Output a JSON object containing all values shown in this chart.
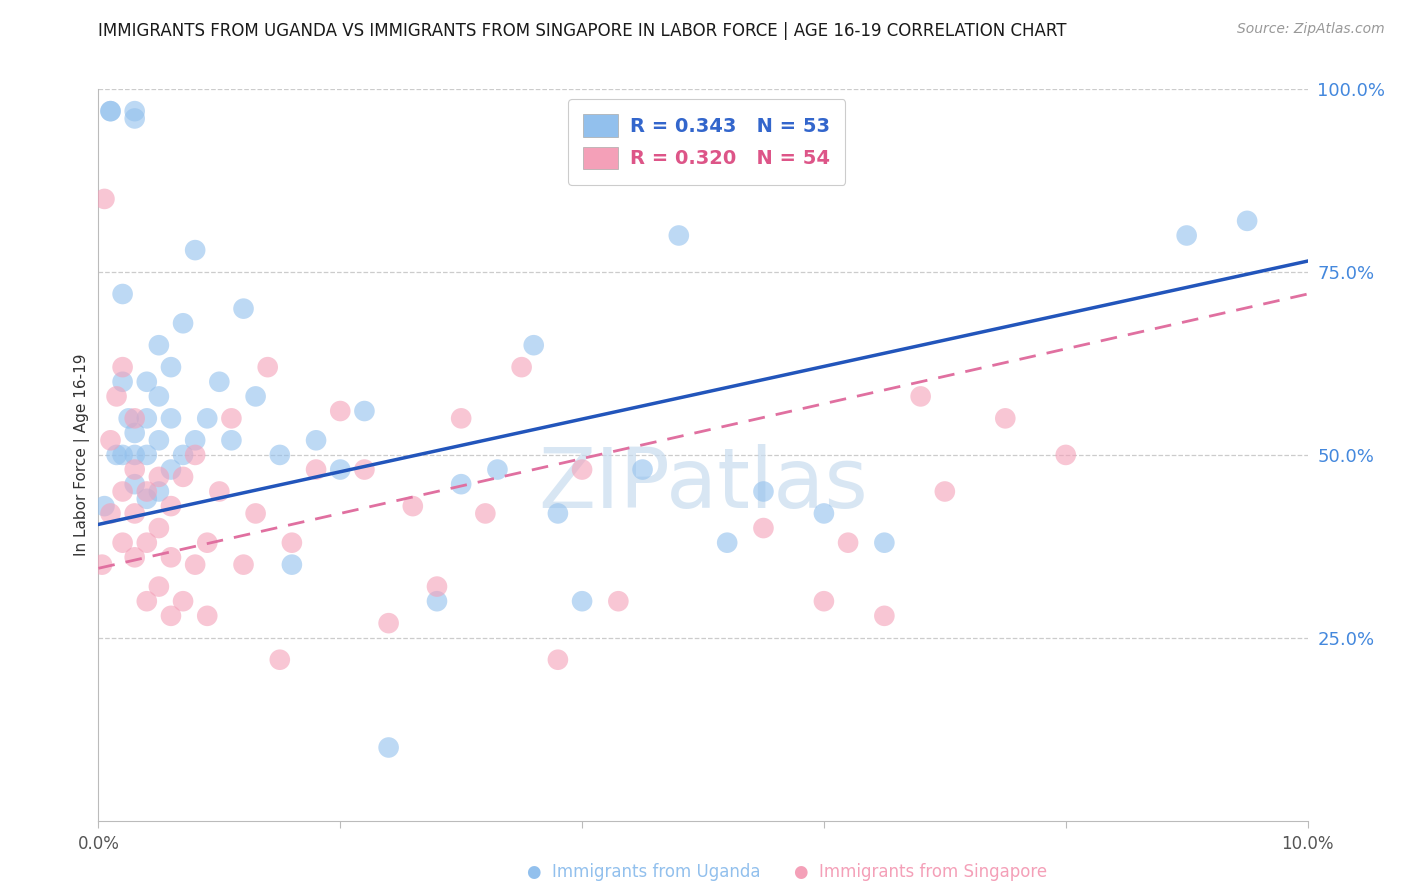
{
  "title": "IMMIGRANTS FROM UGANDA VS IMMIGRANTS FROM SINGAPORE IN LABOR FORCE | AGE 16-19 CORRELATION CHART",
  "source": "Source: ZipAtlas.com",
  "ylabel": "In Labor Force | Age 16-19",
  "xlim": [
    0.0,
    0.1
  ],
  "ylim": [
    0.0,
    1.0
  ],
  "legend_r_uganda": "R = 0.343",
  "legend_n_uganda": "N = 53",
  "legend_r_singapore": "R = 0.320",
  "legend_n_singapore": "N = 54",
  "color_uganda": "#92C0ED",
  "color_singapore": "#F4A0B8",
  "color_uganda_line": "#2255BB",
  "color_singapore_line": "#E070A0",
  "watermark_text": "ZIPatlas",
  "uganda_x": [
    0.0005,
    0.001,
    0.001,
    0.0015,
    0.002,
    0.002,
    0.002,
    0.0025,
    0.003,
    0.003,
    0.003,
    0.003,
    0.003,
    0.004,
    0.004,
    0.004,
    0.004,
    0.005,
    0.005,
    0.005,
    0.005,
    0.006,
    0.006,
    0.006,
    0.007,
    0.007,
    0.008,
    0.008,
    0.009,
    0.01,
    0.011,
    0.012,
    0.013,
    0.015,
    0.016,
    0.018,
    0.02,
    0.022,
    0.024,
    0.028,
    0.03,
    0.033,
    0.036,
    0.038,
    0.04,
    0.045,
    0.048,
    0.052,
    0.055,
    0.06,
    0.065,
    0.09,
    0.095
  ],
  "uganda_y": [
    0.43,
    0.97,
    0.97,
    0.5,
    0.6,
    0.72,
    0.5,
    0.55,
    0.96,
    0.97,
    0.5,
    0.46,
    0.53,
    0.44,
    0.5,
    0.55,
    0.6,
    0.45,
    0.52,
    0.58,
    0.65,
    0.48,
    0.55,
    0.62,
    0.5,
    0.68,
    0.52,
    0.78,
    0.55,
    0.6,
    0.52,
    0.7,
    0.58,
    0.5,
    0.35,
    0.52,
    0.48,
    0.56,
    0.1,
    0.3,
    0.46,
    0.48,
    0.65,
    0.42,
    0.3,
    0.48,
    0.8,
    0.38,
    0.45,
    0.42,
    0.38,
    0.8,
    0.82
  ],
  "singapore_x": [
    0.0003,
    0.0005,
    0.001,
    0.001,
    0.0015,
    0.002,
    0.002,
    0.002,
    0.003,
    0.003,
    0.003,
    0.003,
    0.004,
    0.004,
    0.004,
    0.005,
    0.005,
    0.005,
    0.006,
    0.006,
    0.006,
    0.007,
    0.007,
    0.008,
    0.008,
    0.009,
    0.009,
    0.01,
    0.011,
    0.012,
    0.013,
    0.014,
    0.015,
    0.016,
    0.018,
    0.02,
    0.022,
    0.024,
    0.026,
    0.028,
    0.03,
    0.032,
    0.035,
    0.038,
    0.04,
    0.043,
    0.055,
    0.06,
    0.062,
    0.065,
    0.068,
    0.07,
    0.075,
    0.08
  ],
  "singapore_y": [
    0.35,
    0.85,
    0.42,
    0.52,
    0.58,
    0.62,
    0.38,
    0.45,
    0.36,
    0.42,
    0.48,
    0.55,
    0.3,
    0.38,
    0.45,
    0.32,
    0.4,
    0.47,
    0.28,
    0.36,
    0.43,
    0.3,
    0.47,
    0.35,
    0.5,
    0.28,
    0.38,
    0.45,
    0.55,
    0.35,
    0.42,
    0.62,
    0.22,
    0.38,
    0.48,
    0.56,
    0.48,
    0.27,
    0.43,
    0.32,
    0.55,
    0.42,
    0.62,
    0.22,
    0.48,
    0.3,
    0.4,
    0.3,
    0.38,
    0.28,
    0.58,
    0.45,
    0.55,
    0.5
  ],
  "uganda_line_x": [
    0.0,
    0.1
  ],
  "uganda_line_y": [
    0.405,
    0.765
  ],
  "singapore_line_x": [
    0.0,
    0.1
  ],
  "singapore_line_y": [
    0.345,
    0.72
  ]
}
